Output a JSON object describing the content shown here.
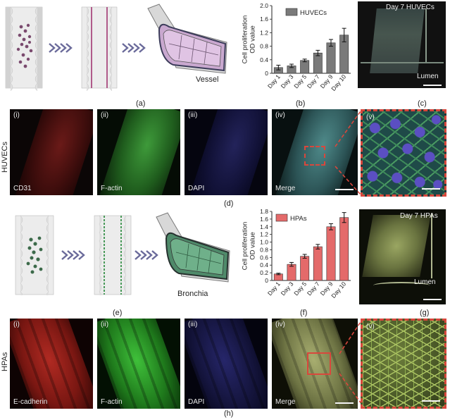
{
  "panel_labels": {
    "a": "(a)",
    "b": "(b)",
    "c": "(c)",
    "d": "(d)",
    "e": "(e)",
    "f": "(f)",
    "g": "(g)",
    "h": "(h)"
  },
  "schematic_top": {
    "label": "Vessel"
  },
  "schematic_bottom": {
    "label": "Bronchia"
  },
  "huvec_row": {
    "side_label": "HUVECs",
    "panels": [
      {
        "num": "(i)",
        "label": "CD31"
      },
      {
        "num": "(ii)",
        "label": "F-actin"
      },
      {
        "num": "(iii)",
        "label": "DAPI"
      },
      {
        "num": "(iv)",
        "label": "Merge"
      },
      {
        "num": "(v)",
        "label": ""
      }
    ]
  },
  "hpa_row": {
    "side_label": "HPAs",
    "panels": [
      {
        "num": "(i)",
        "label": "E-cadherin"
      },
      {
        "num": "(ii)",
        "label": "F-actin"
      },
      {
        "num": "(iii)",
        "label": "DAPI"
      },
      {
        "num": "(iv)",
        "label": "Merge"
      },
      {
        "num": "(v)",
        "label": ""
      }
    ]
  },
  "image_c": {
    "title": "Day 7 HUVECs",
    "sub": "Lumen"
  },
  "image_g": {
    "title": "Day 7 HPAs",
    "sub": "Lumen"
  },
  "colors": {
    "huvec_bar": "#7a7a7a",
    "hpa_bar": "#e46a6a",
    "dashed_box": "#d9473c"
  },
  "chart_data": [
    {
      "type": "bar",
      "ylabel": "Cell proliferation\nOD value",
      "xlabel": "",
      "legend": "HUVECs",
      "legend_position": "top-right",
      "categories": [
        "Day 1",
        "Day 3",
        "Day 5",
        "Day 7",
        "Day 9",
        "Day 10"
      ],
      "values": [
        0.17,
        0.22,
        0.38,
        0.6,
        0.9,
        1.13
      ],
      "errors": [
        0.07,
        0.05,
        0.04,
        0.08,
        0.1,
        0.2
      ],
      "ylim": [
        0,
        2.0
      ],
      "yticks": [
        "0",
        "0.4",
        "0.8",
        "1.2",
        "1.6",
        "2.0"
      ],
      "ytick_values": [
        0,
        0.4,
        0.8,
        1.2,
        1.6,
        2.0
      ],
      "grid": false
    },
    {
      "type": "bar",
      "ylabel": "Cell proliferation\nOD value",
      "xlabel": "",
      "legend": "HPAs",
      "legend_position": "top-left",
      "categories": [
        "Day 1",
        "Day 3",
        "Day 5",
        "Day 7",
        "Day 9",
        "Day 10"
      ],
      "values": [
        0.17,
        0.42,
        0.63,
        0.88,
        1.4,
        1.64
      ],
      "errors": [
        0.02,
        0.05,
        0.05,
        0.06,
        0.08,
        0.13
      ],
      "ylim": [
        0,
        1.8
      ],
      "yticks": [
        "0",
        "0.2",
        "0.4",
        "0.6",
        "0.8",
        "1.0",
        "1.2",
        "1.4",
        "1.6",
        "1.8"
      ],
      "ytick_values": [
        0,
        0.2,
        0.4,
        0.6,
        0.8,
        1.0,
        1.2,
        1.4,
        1.6,
        1.8
      ],
      "grid": false
    }
  ]
}
